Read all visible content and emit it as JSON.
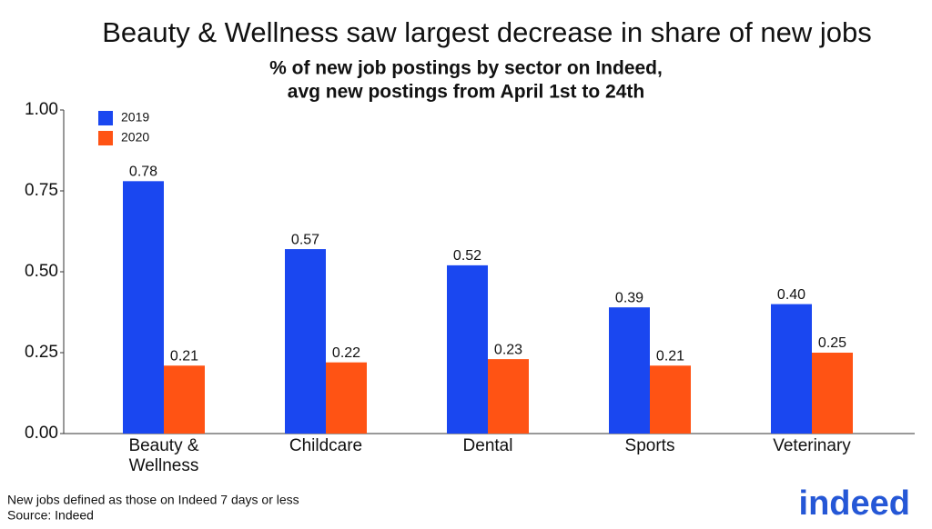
{
  "chart_data": {
    "type": "bar",
    "title": "Beauty & Wellness saw largest decrease in share of new jobs",
    "subtitle": [
      "% of new job postings by sector on Indeed,",
      "avg new postings from April 1st to 24th"
    ],
    "categories": [
      "Beauty & Wellness",
      "Childcare",
      "Dental",
      "Sports",
      "Veterinary"
    ],
    "series": [
      {
        "name": "2019",
        "color": "#1a47f0",
        "values": [
          0.78,
          0.57,
          0.52,
          0.39,
          0.4
        ],
        "value_labels": [
          "0.78",
          "0.57",
          "0.52",
          "0.39",
          "0.40"
        ]
      },
      {
        "name": "2020",
        "color": "#ff5314",
        "values": [
          0.21,
          0.22,
          0.23,
          0.21,
          0.25
        ],
        "value_labels": [
          "0.21",
          "0.22",
          "0.23",
          "0.21",
          "0.25"
        ]
      }
    ],
    "ylim": [
      0,
      1
    ],
    "yticks": [
      {
        "value": 0,
        "label": "0.00"
      },
      0.25,
      {
        "value": 0.5,
        "label": "0.50"
      },
      0.75,
      {
        "value": 1,
        "label": "1.00"
      }
    ],
    "grid": false,
    "legend": "top-left",
    "footnotes": [
      "New jobs defined as those on Indeed 7 days or less",
      "Source: Indeed"
    ],
    "logo": "indeed"
  }
}
